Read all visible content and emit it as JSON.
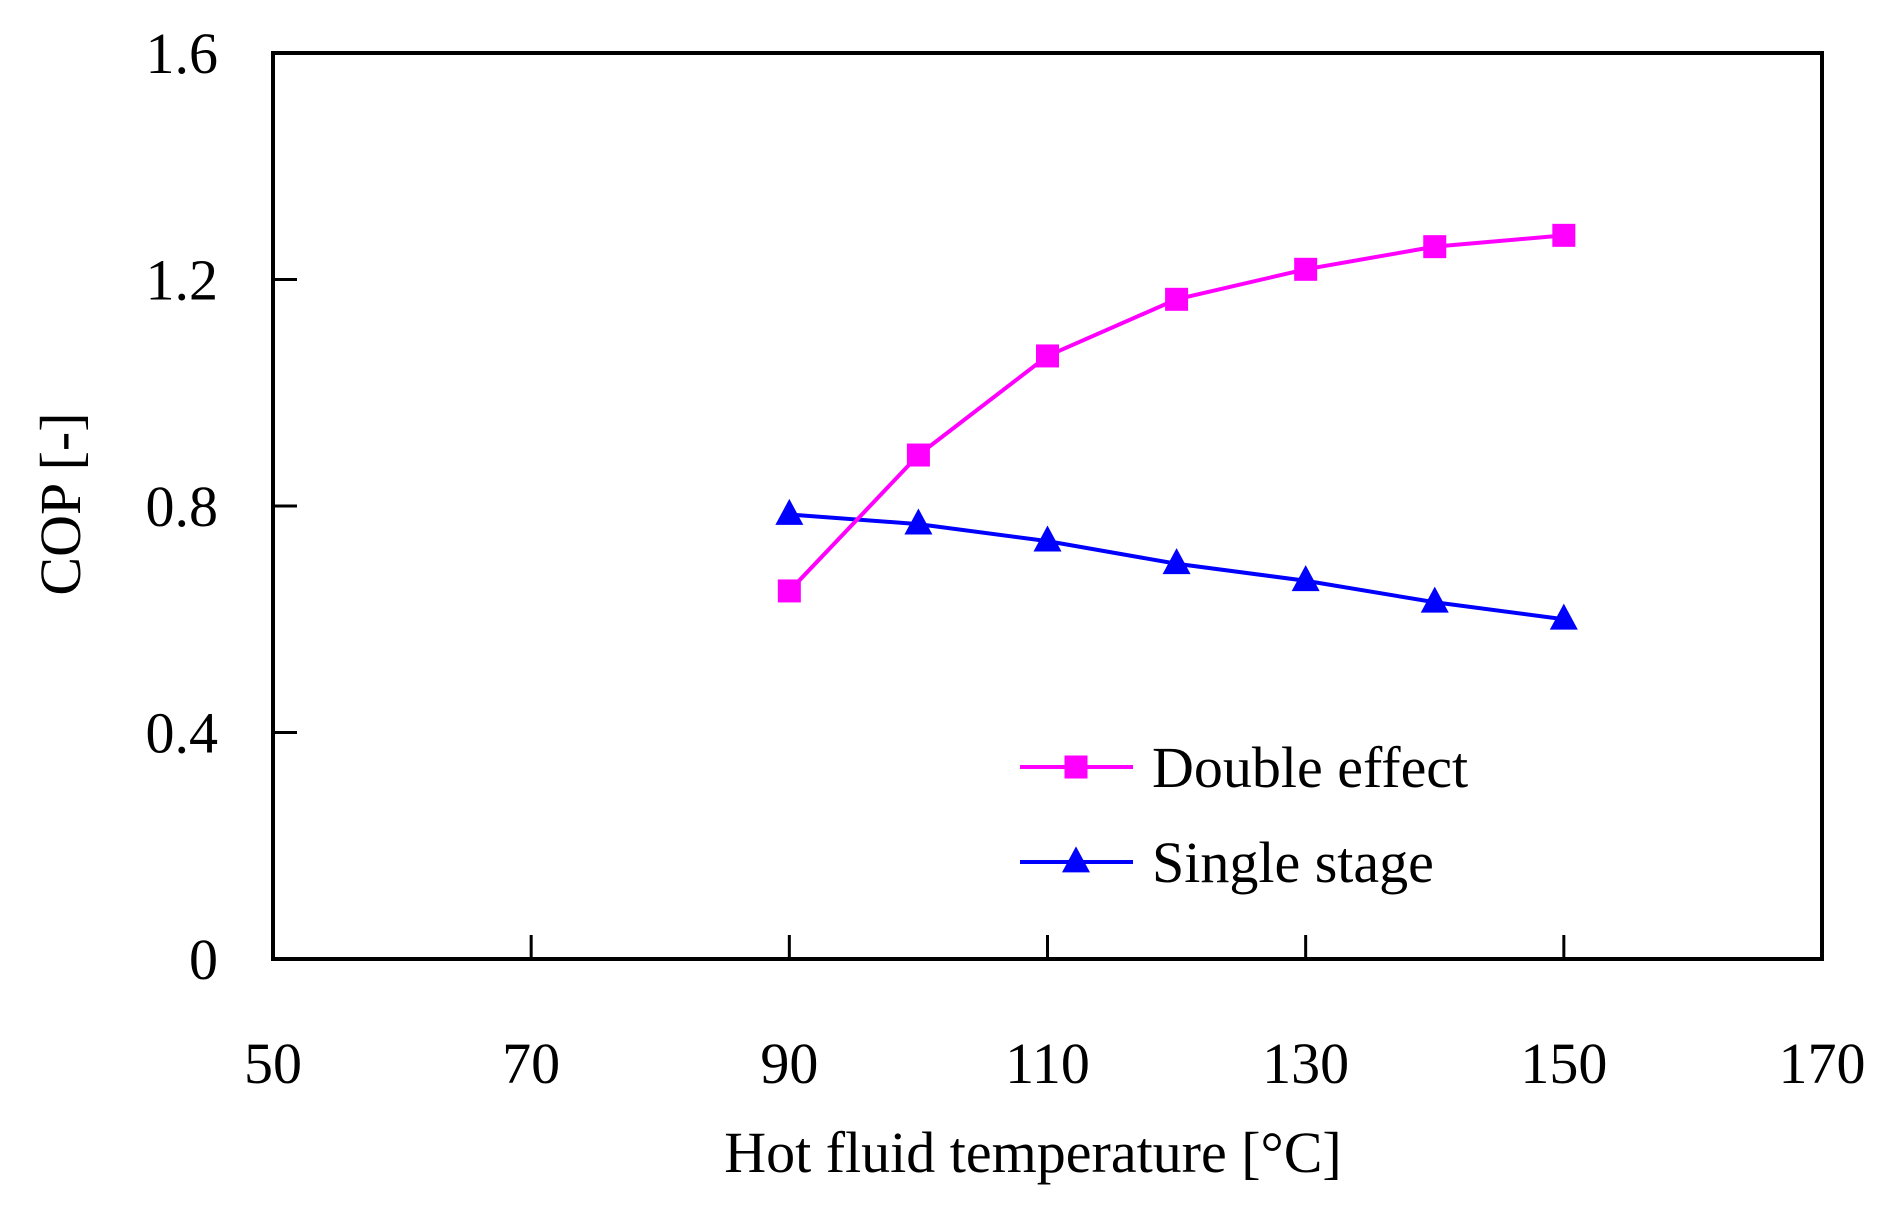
{
  "chart_data": {
    "type": "line",
    "title": "",
    "xlabel": "Hot fluid temperature [°C]",
    "ylabel": "COP [-]",
    "xlim": [
      50,
      170
    ],
    "ylim": [
      0,
      1.6
    ],
    "x_ticks": [
      50,
      70,
      90,
      110,
      130,
      150,
      170
    ],
    "x_tick_labels": [
      "50",
      "70",
      "90",
      "110",
      "130",
      "150",
      "170"
    ],
    "y_ticks": [
      0,
      0.4,
      0.8,
      1.2,
      1.6
    ],
    "y_tick_labels": [
      "0",
      "0.4",
      "0.8",
      "1.2",
      "1.6"
    ],
    "grid": false,
    "legend_position": "bottom-right",
    "series": [
      {
        "name": "Double effect",
        "marker": "square",
        "color": "#FF00FF",
        "x": [
          90,
          100,
          110,
          120,
          130,
          140,
          150
        ],
        "y": [
          0.65,
          0.89,
          1.065,
          1.165,
          1.218,
          1.258,
          1.278
        ]
      },
      {
        "name": "Single stage",
        "marker": "triangle",
        "color": "#0000FF",
        "x": [
          90,
          100,
          110,
          120,
          130,
          140,
          150
        ],
        "y": [
          0.785,
          0.768,
          0.738,
          0.698,
          0.668,
          0.63,
          0.6
        ]
      }
    ]
  }
}
